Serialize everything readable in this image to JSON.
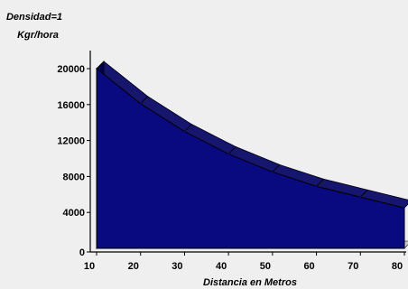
{
  "chart_data": {
    "type": "area",
    "title_lines": [
      "Densidad=1",
      "Kgr/hora"
    ],
    "xlabel": "Distancia en Metros",
    "ylabel": "",
    "x": [
      10,
      20,
      30,
      40,
      50,
      60,
      70,
      80
    ],
    "series": [
      {
        "values": [
          20000,
          16100,
          13000,
          10500,
          8500,
          6900,
          5700,
          4500
        ]
      }
    ],
    "xlim": [
      10,
      80
    ],
    "ylim": [
      0,
      20000
    ],
    "x_ticks": [
      "10",
      "20",
      "30",
      "40",
      "50",
      "60",
      "70",
      "80"
    ],
    "y_ticks": [
      "0",
      "4000",
      "8000",
      "12000",
      "16000",
      "20000"
    ],
    "grid": false,
    "colors": {
      "fill": "#0a0a80",
      "top_face": "#16166e",
      "side_face": "#000050",
      "floor": "#c8c8c8",
      "wall": "#efefef"
    }
  }
}
